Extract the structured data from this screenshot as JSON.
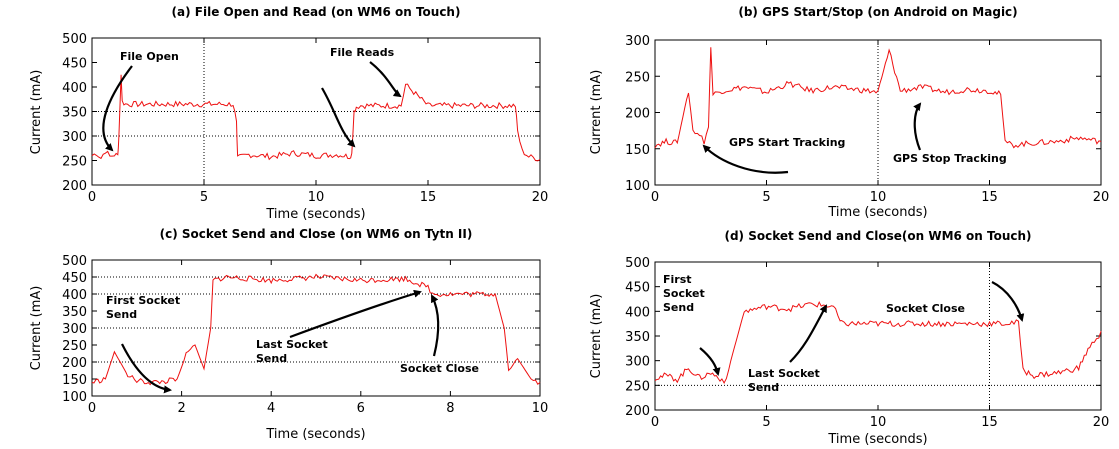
{
  "chart_data": [
    {
      "type": "line",
      "title": "(a) File Open and Read (on WM6 on Touch)",
      "xlabel": "Time (seconds)",
      "ylabel": "Current (mA)",
      "xlim": [
        0,
        20
      ],
      "ylim": [
        200,
        500
      ],
      "xticks": [
        "0",
        "5",
        "10",
        "15",
        "20"
      ],
      "yticks": [
        "200",
        "250",
        "300",
        "350",
        "400",
        "450",
        "500"
      ],
      "grid_y": [
        300,
        350
      ],
      "grid_x": [
        5
      ],
      "series_color": "#ee1111",
      "series": [
        {
          "x": [
            0,
            0.2,
            0.4,
            0.6,
            0.8,
            1.0,
            1.15,
            1.2,
            1.3,
            1.35,
            1.5,
            2.5,
            4,
            5.5,
            6.3,
            6.45,
            6.5,
            7,
            8,
            9,
            10,
            11,
            11.5,
            11.6,
            11.7,
            11.8,
            12,
            13,
            13.8,
            14,
            15,
            16,
            17,
            18.9,
            19,
            19.2,
            19.5,
            19.8,
            20
          ],
          "y": [
            260,
            265,
            255,
            270,
            258,
            262,
            260,
            300,
            425,
            370,
            365,
            365,
            365,
            365,
            365,
            330,
            255,
            262,
            258,
            265,
            260,
            262,
            258,
            265,
            350,
            360,
            362,
            362,
            362,
            405,
            362,
            362,
            362,
            362,
            310,
            270,
            258,
            255,
            252
          ]
        }
      ],
      "annotations": [
        "File Open",
        "File Reads"
      ]
    },
    {
      "type": "line",
      "title": "(b) GPS Start/Stop (on Android on Magic)",
      "xlabel": "Time (seconds)",
      "ylabel": "Current (mA)",
      "xlim": [
        0,
        20
      ],
      "ylim": [
        100,
        300
      ],
      "xticks": [
        "0",
        "5",
        "10",
        "15",
        "20"
      ],
      "yticks": [
        "100",
        "150",
        "200",
        "250",
        "300"
      ],
      "grid_y": [],
      "grid_x": [
        10
      ],
      "series_color": "#ee1111",
      "series": [
        {
          "x": [
            0,
            0.5,
            1,
            1.5,
            1.7,
            2,
            2.2,
            2.4,
            2.5,
            2.6,
            3,
            4,
            5,
            6,
            7,
            8,
            9,
            10,
            10.5,
            11,
            12,
            13,
            14,
            15,
            15.5,
            15.7,
            16,
            17,
            18,
            19,
            20
          ],
          "y": [
            155,
            160,
            158,
            230,
            175,
            170,
            160,
            180,
            290,
            225,
            230,
            235,
            228,
            240,
            230,
            235,
            232,
            228,
            285,
            230,
            235,
            228,
            232,
            230,
            225,
            160,
            155,
            158,
            160,
            165,
            160
          ]
        }
      ],
      "annotations": [
        "GPS Start Tracking",
        "GPS Stop Tracking"
      ]
    },
    {
      "type": "line",
      "title": "(c) Socket Send and Close (on WM6 on Tytn II)",
      "xlabel": "Time (seconds)",
      "ylabel": "Current (mA)",
      "xlim": [
        0,
        10
      ],
      "ylim": [
        100,
        500
      ],
      "xticks": [
        "0",
        "2",
        "4",
        "6",
        "8",
        "10"
      ],
      "yticks": [
        "100",
        "150",
        "200",
        "250",
        "300",
        "350",
        "400",
        "450",
        "500"
      ],
      "grid_y": [
        200,
        300,
        400,
        450
      ],
      "grid_x": [],
      "series_color": "#ee1111",
      "series": [
        {
          "x": [
            0,
            0.3,
            0.5,
            0.8,
            1.0,
            1.3,
            1.6,
            1.9,
            2.1,
            2.3,
            2.5,
            2.65,
            2.7,
            3,
            4,
            5,
            6,
            7,
            7.5,
            7.6,
            8,
            9,
            9.2,
            9.3,
            9.5,
            9.8,
            10
          ],
          "y": [
            140,
            150,
            230,
            160,
            145,
            140,
            142,
            150,
            220,
            250,
            180,
            300,
            440,
            450,
            440,
            450,
            440,
            445,
            420,
            400,
            400,
            400,
            300,
            180,
            210,
            150,
            140
          ]
        }
      ],
      "annotations": [
        "First Socket Send",
        "Last Socket Send",
        "Socket Close"
      ]
    },
    {
      "type": "line",
      "title": "(d) Socket Send and Close(on WM6 on Touch)",
      "xlabel": "Time (seconds)",
      "ylabel": "Current (mA)",
      "xlim": [
        0,
        20
      ],
      "ylim": [
        200,
        500
      ],
      "xticks": [
        "0",
        "5",
        "10",
        "15",
        "20"
      ],
      "yticks": [
        "200",
        "250",
        "300",
        "350",
        "400",
        "450",
        "500"
      ],
      "grid_y": [
        250
      ],
      "grid_x": [
        15
      ],
      "series_color": "#ee1111",
      "series": [
        {
          "x": [
            0,
            0.5,
            1,
            1.5,
            2,
            2.5,
            3,
            3.2,
            3.4,
            4,
            5,
            6,
            7,
            8,
            8.3,
            8.4,
            10,
            12,
            14,
            16,
            16.3,
            16.5,
            17,
            18,
            19,
            19.5,
            19.8,
            20
          ],
          "y": [
            265,
            270,
            262,
            285,
            265,
            275,
            262,
            258,
            300,
            400,
            410,
            405,
            415,
            410,
            380,
            375,
            375,
            375,
            375,
            375,
            380,
            280,
            270,
            275,
            285,
            330,
            340,
            360
          ]
        }
      ],
      "annotations": [
        "First Socket Send",
        "Last Socket Send",
        "Socket Close"
      ]
    }
  ]
}
